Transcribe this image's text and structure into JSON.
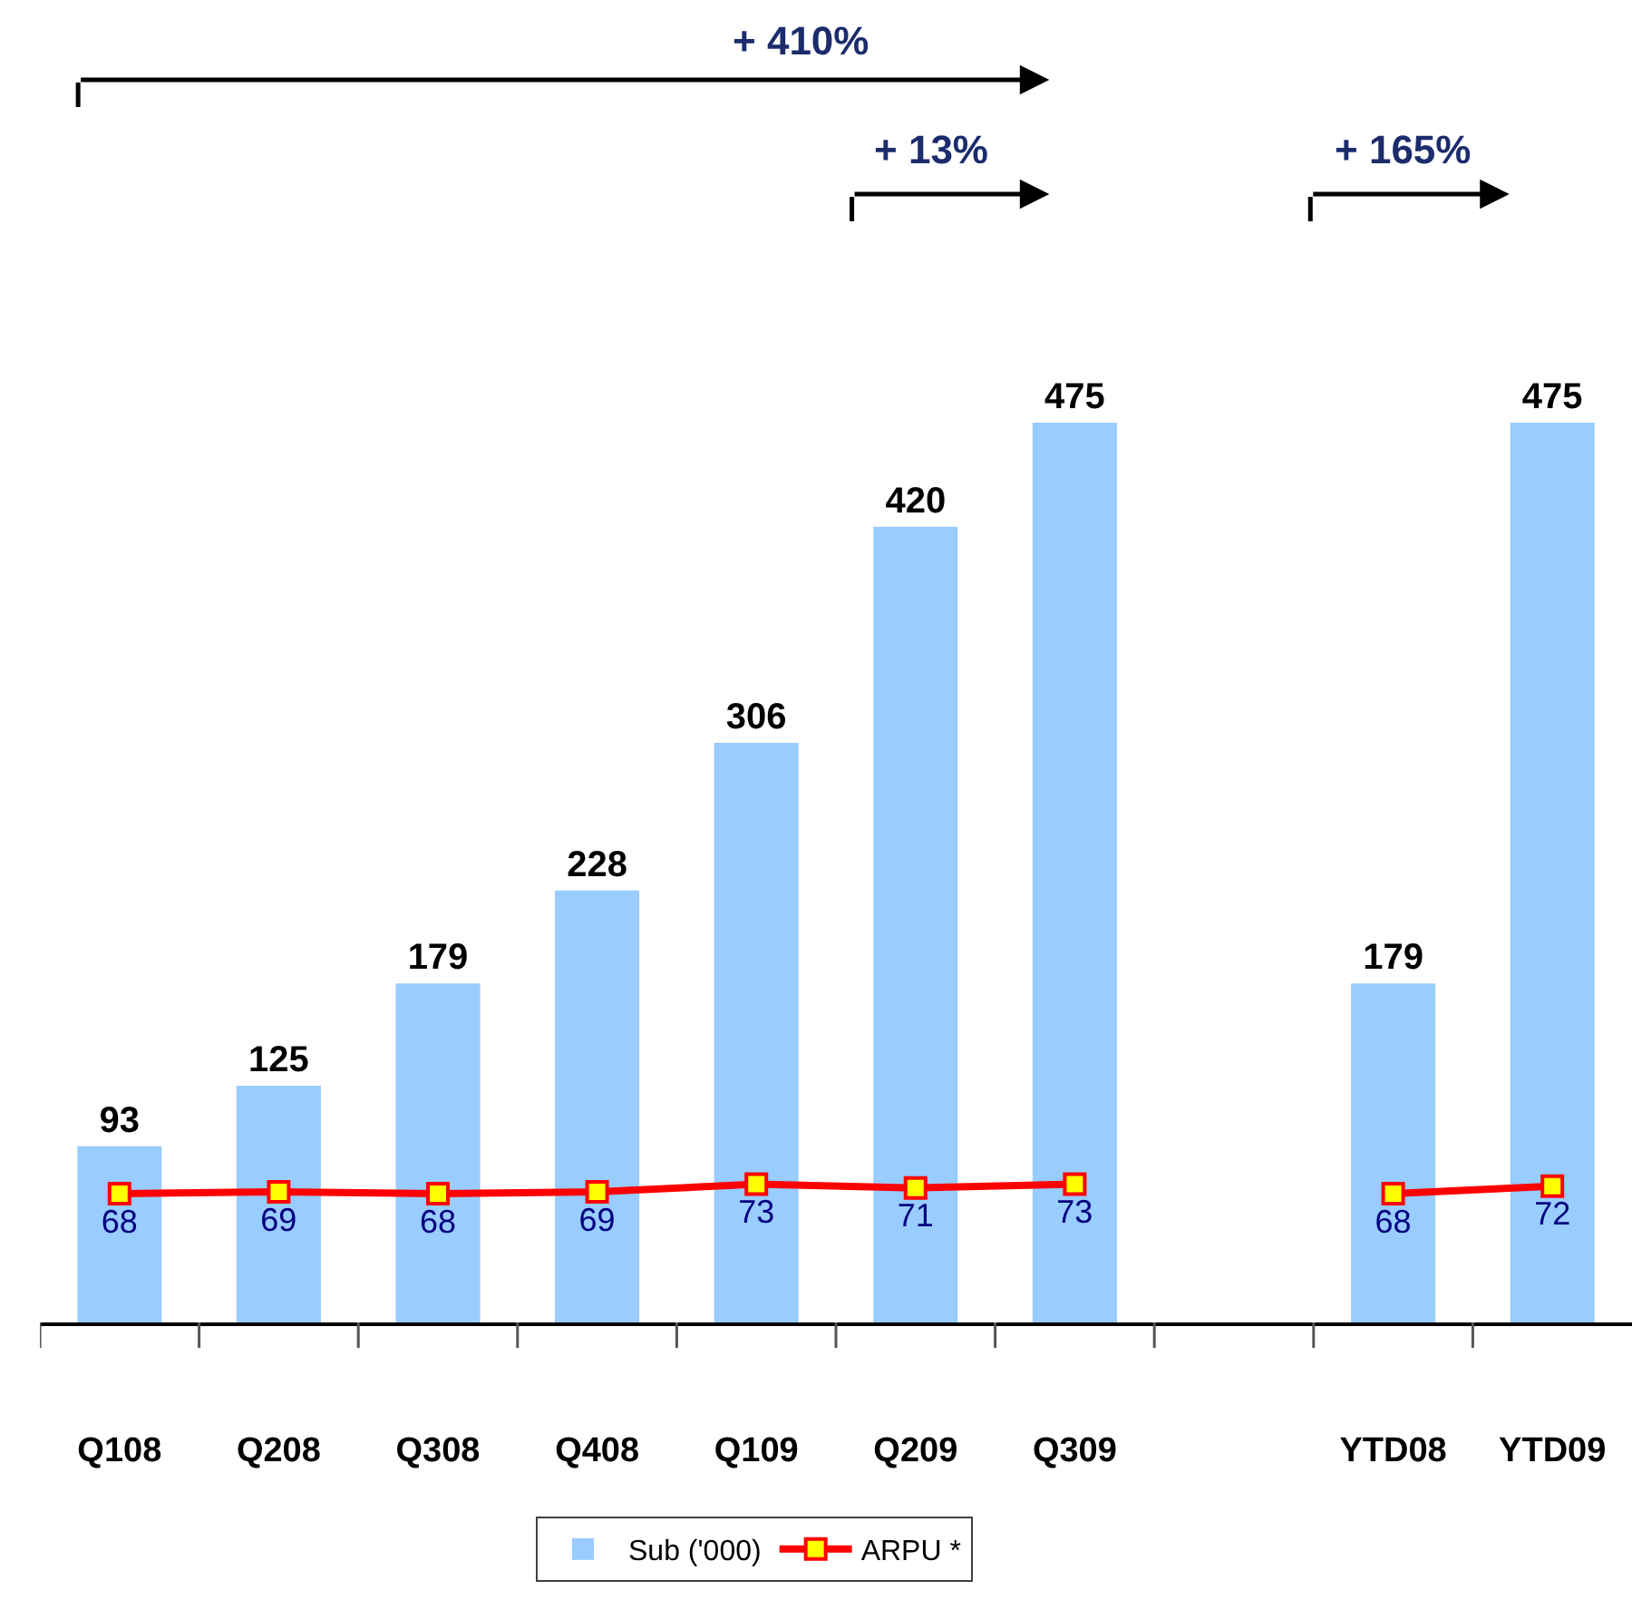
{
  "chart_data": {
    "type": "bar",
    "categories": [
      "Q108",
      "Q208",
      "Q308",
      "Q408",
      "Q109",
      "Q209",
      "Q309",
      null,
      "YTD08",
      "YTD09"
    ],
    "series": [
      {
        "name": "Sub ('000)",
        "color": "#99ccff",
        "values": [
          93,
          125,
          179,
          228,
          306,
          420,
          475,
          null,
          179,
          475
        ]
      },
      {
        "name": "ARPU *",
        "type": "line",
        "color": "#ff0000",
        "values": [
          68,
          69,
          68,
          69,
          73,
          71,
          73,
          null,
          68,
          72
        ]
      }
    ],
    "data_labels": true,
    "tick_labels": "x",
    "legend": "bottom",
    "marker": "square",
    "line_style": "solid",
    "annotations": [
      "+ 410%",
      "+ 13%",
      "+ 165%"
    ]
  }
}
